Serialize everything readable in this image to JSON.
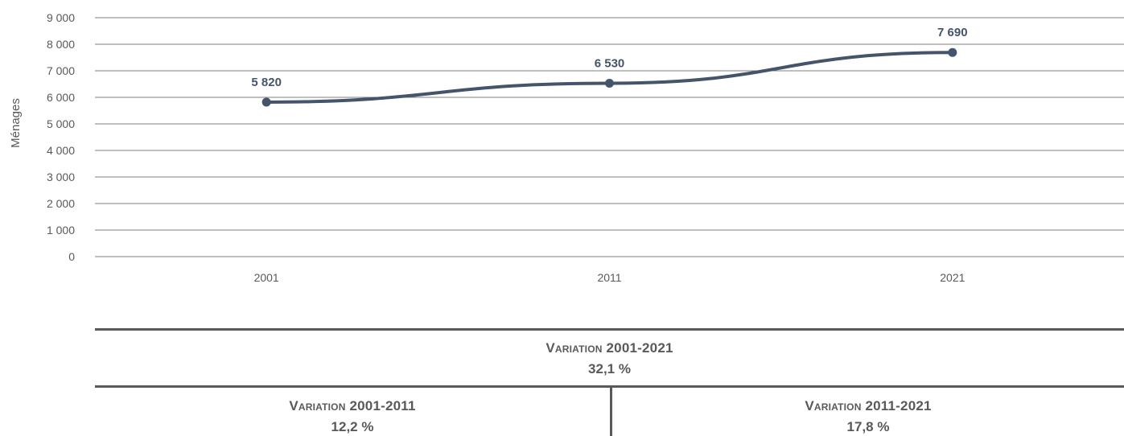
{
  "chart_data": {
    "type": "line",
    "categories": [
      "2001",
      "2011",
      "2021"
    ],
    "series": [
      {
        "values": [
          5820,
          6530,
          7690
        ],
        "labels": [
          "5 820",
          "6 530",
          "7 690"
        ]
      }
    ],
    "xlabel": "",
    "ylabel": "Ménages",
    "ylim": [
      0,
      9000
    ],
    "yticks": [
      0,
      1000,
      2000,
      3000,
      4000,
      5000,
      6000,
      7000,
      8000,
      9000
    ],
    "ytick_labels": [
      "0",
      "1 000",
      "2 000",
      "3 000",
      "4 000",
      "5 000",
      "6 000",
      "7 000",
      "8 000",
      "9 000"
    ],
    "grid": true,
    "line_color": "#44546a"
  },
  "stats": {
    "total": {
      "label": "Variation 2001-2021",
      "value": "32,1 %"
    },
    "first": {
      "label": "Variation 2001-2011",
      "value": "12,2 %"
    },
    "second": {
      "label": "Variation 2011-2021",
      "value": "17,8 %"
    }
  }
}
